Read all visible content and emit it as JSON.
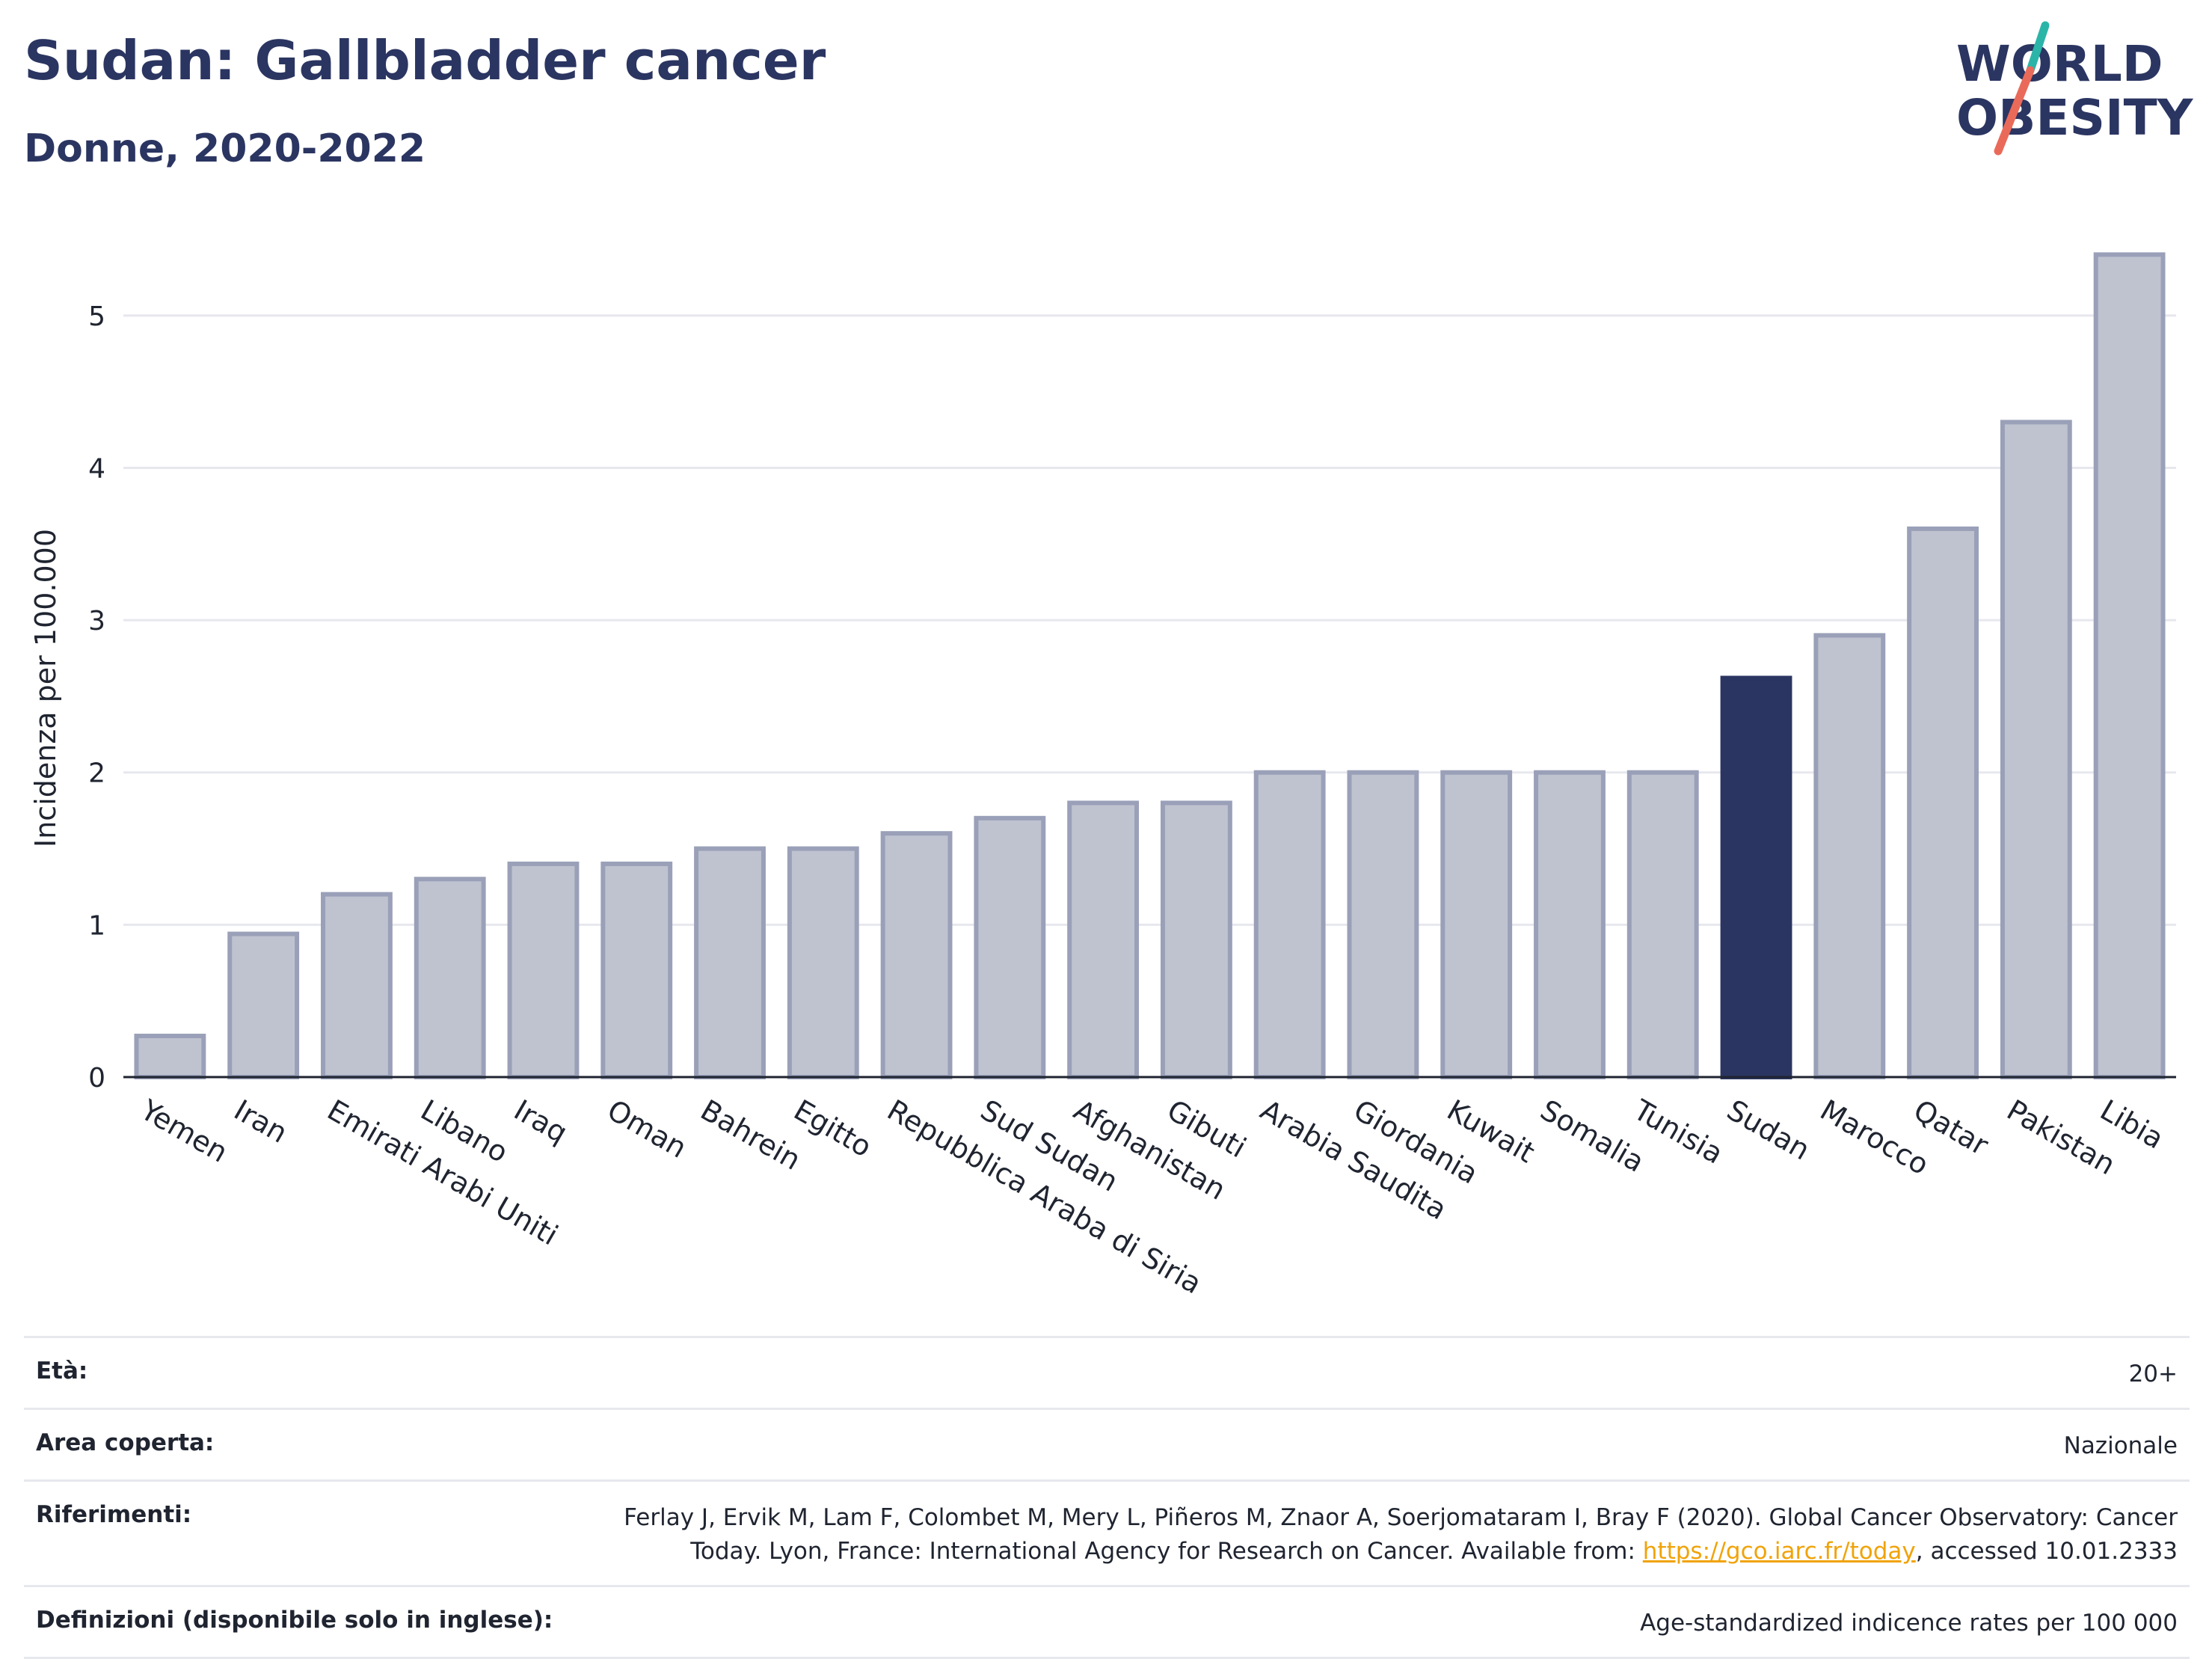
{
  "header": {
    "title": "Sudan: Gallbladder cancer",
    "subtitle": "Donne, 2020-2022"
  },
  "logo": {
    "line1": "WORLD",
    "line2": "OBESITY",
    "slash_colors": [
      "#2bb5a8",
      "#ea6a5a"
    ],
    "text_color": "#2b3561"
  },
  "colors": {
    "bar_fill": "#bfc3d0",
    "bar_stroke": "#9aa0b8",
    "highlight": "#2b3561",
    "grid": "#e6e8ee",
    "axis": "#1f2430"
  },
  "chart_data": {
    "type": "bar",
    "title": "Sudan: Gallbladder cancer",
    "subtitle": "Donne, 2020-2022",
    "xlabel": "",
    "ylabel": "Incidenza per 100.000",
    "ylim": [
      0,
      5.5
    ],
    "yticks": [
      0,
      1,
      2,
      3,
      4,
      5
    ],
    "highlight": "Sudan",
    "grid": true,
    "categories": [
      "Yemen",
      "Iran",
      "Emirati Arabi Uniti",
      "Libano",
      "Iraq",
      "Oman",
      "Bahrein",
      "Egitto",
      "Repubblica Araba di Siria",
      "Sud Sudan",
      "Afghanistan",
      "Gibuti",
      "Arabia Saudita",
      "Giordania",
      "Kuwait",
      "Somalia",
      "Tunisia",
      "Sudan",
      "Marocco",
      "Qatar",
      "Pakistan",
      "Libia"
    ],
    "values": [
      0.27,
      0.94,
      1.2,
      1.3,
      1.4,
      1.4,
      1.5,
      1.5,
      1.6,
      1.7,
      1.8,
      1.8,
      2.0,
      2.0,
      2.0,
      2.0,
      2.0,
      2.62,
      2.9,
      3.6,
      4.3,
      5.4
    ]
  },
  "meta": {
    "age_label": "Età:",
    "age_value": "20+",
    "area_label": "Area coperta:",
    "area_value": "Nazionale",
    "refs_label": "Riferimenti:",
    "refs_line1": "Ferlay J, Ervik M, Lam F, Colombet M, Mery L, Piñeros M, Znaor A, Soerjomataram I, Bray F (2020). Global Cancer Observatory: Cancer",
    "refs_line2_pre": "Today. Lyon, France: International Agency for Research on Cancer. Available from: ",
    "refs_link": "https://gco.iarc.fr/today",
    "refs_line2_post": ", accessed 10.01.2333",
    "defs_label": "Definizioni (disponibile solo in inglese):",
    "defs_value": "Age-standardized indicence rates per 100 000"
  }
}
